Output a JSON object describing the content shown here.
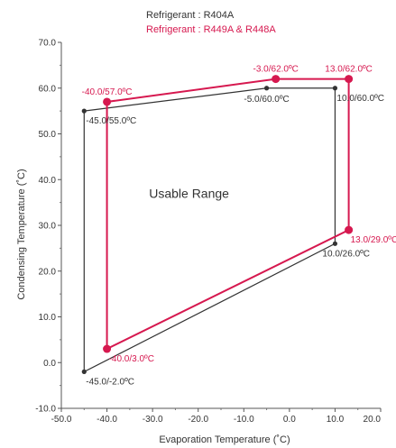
{
  "chart_data": {
    "type": "line",
    "legend": [
      {
        "name": "Refrigerant : R404A",
        "color": "#333333"
      },
      {
        "name": "Refrigerant : R449A  & R448A",
        "color": "#d6184f"
      }
    ],
    "xlabel": "Evaporation Temperature (˚C)",
    "ylabel": "Condensing Temperature (˚C)",
    "xlim": [
      -50,
      20
    ],
    "ylim": [
      -10,
      70
    ],
    "x_ticks": [
      "-50.0",
      "-40.0",
      "-30.0",
      "-20.0",
      "-10.0",
      "0.0",
      "10.0",
      "20.0"
    ],
    "y_ticks": [
      "-10.0",
      "0.0",
      "10.0",
      "20.0",
      "30.0",
      "40.0",
      "50.0",
      "60.0",
      "70.0"
    ],
    "annotation": "Usable Range",
    "series": [
      {
        "name": "Refrigerant : R404A",
        "color": "#333333",
        "closed": true,
        "points": [
          {
            "x": -45,
            "y": 55,
            "label": "-45.0/55.0ºC",
            "anchor": "ne"
          },
          {
            "x": -5,
            "y": 60,
            "label": "-5.0/60.0ºC",
            "anchor": "s"
          },
          {
            "x": 10,
            "y": 60,
            "label": "10.0/60.0ºC",
            "anchor": "se"
          },
          {
            "x": 10,
            "y": 26,
            "label": "10.0/26.0ºC",
            "anchor": "sw"
          },
          {
            "x": -45,
            "y": -2,
            "label": "-45.0/-2.0ºC",
            "anchor": "se"
          }
        ]
      },
      {
        "name": "Refrigerant : R449A  & R448A",
        "color": "#d6184f",
        "closed": true,
        "points": [
          {
            "x": -40,
            "y": 57,
            "label": "-40.0/57.0ºC",
            "anchor": "n"
          },
          {
            "x": -3,
            "y": 62,
            "label": "-3.0/62.0ºC",
            "anchor": "n"
          },
          {
            "x": 13,
            "y": 62,
            "label": "13.0/62.0ºC",
            "anchor": "n"
          },
          {
            "x": 13,
            "y": 29,
            "label": "13.0/29.0ºC",
            "anchor": "se"
          },
          {
            "x": -40,
            "y": 3,
            "label": "-40.0/3.0ºC",
            "anchor": "se"
          }
        ]
      }
    ]
  }
}
